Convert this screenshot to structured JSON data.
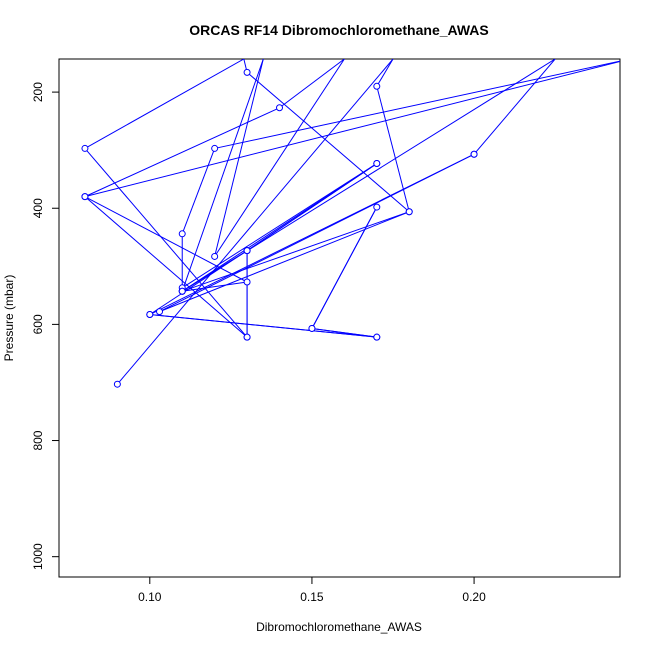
{
  "chart_data": {
    "type": "line",
    "title": "ORCAS RF14 Dibromochloromethane_AWAS",
    "xlabel": "Dibromochloromethane_AWAS",
    "ylabel": "Pressure (mbar)",
    "xlim": [
      0.072,
      0.245
    ],
    "ylim": [
      1035,
      143
    ],
    "y_reversed": true,
    "x_ticks": [
      "0.10",
      "0.15",
      "0.20"
    ],
    "x_tick_values": [
      0.1,
      0.15,
      0.2
    ],
    "y_ticks": [
      "200",
      "400",
      "600",
      "800",
      "1000"
    ],
    "y_tick_values": [
      200,
      400,
      600,
      800,
      1000
    ],
    "grid": false,
    "series": [
      {
        "color": "#0000ff",
        "marker": "open-circle",
        "points": [
          {
            "x": 0.09,
            "y": 703
          },
          {
            "x": 0.175,
            "y": 143
          },
          {
            "x": 0.17,
            "y": 190
          },
          {
            "x": 0.18,
            "y": 406
          },
          {
            "x": 0.13,
            "y": 166
          },
          {
            "x": 0.129,
            "y": 143
          },
          {
            "x": 0.08,
            "y": 297
          },
          {
            "x": 0.13,
            "y": 622
          },
          {
            "x": 0.08,
            "y": 380
          },
          {
            "x": 0.13,
            "y": 527
          },
          {
            "x": 0.11,
            "y": 543
          },
          {
            "x": 0.17,
            "y": 323
          },
          {
            "x": 0.11,
            "y": 537
          },
          {
            "x": 0.11,
            "y": 444
          },
          {
            "x": 0.12,
            "y": 297
          },
          {
            "x": 0.248,
            "y": 143
          },
          {
            "x": 0.08,
            "y": 380
          },
          {
            "x": 0.14,
            "y": 227
          },
          {
            "x": 0.16,
            "y": 143
          },
          {
            "x": 0.12,
            "y": 483
          },
          {
            "x": 0.135,
            "y": 143
          },
          {
            "x": 0.11,
            "y": 543
          },
          {
            "x": 0.13,
            "y": 473
          },
          {
            "x": 0.13,
            "y": 622
          },
          {
            "x": 0.13,
            "y": 473
          },
          {
            "x": 0.17,
            "y": 323
          },
          {
            "x": 0.13,
            "y": 473
          },
          {
            "x": 0.1,
            "y": 583
          },
          {
            "x": 0.17,
            "y": 622
          },
          {
            "x": 0.15,
            "y": 607
          },
          {
            "x": 0.17,
            "y": 398
          },
          {
            "x": 0.15,
            "y": 607
          },
          {
            "x": 0.17,
            "y": 622
          },
          {
            "x": 0.1,
            "y": 583
          },
          {
            "x": 0.2,
            "y": 307
          },
          {
            "x": 0.103,
            "y": 578
          },
          {
            "x": 0.18,
            "y": 406
          },
          {
            "x": 0.11,
            "y": 543
          },
          {
            "x": 0.225,
            "y": 143
          },
          {
            "x": 0.2,
            "y": 307
          }
        ]
      }
    ]
  }
}
